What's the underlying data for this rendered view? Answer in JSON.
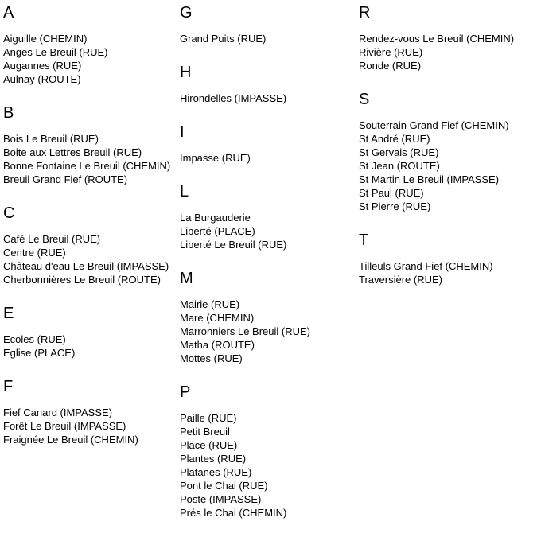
{
  "page": {
    "background_color": "#ffffff",
    "text_color": "#000000"
  },
  "index": {
    "columns": [
      {
        "sections": [
          {
            "letter": "A",
            "items": [
              "Aiguille (CHEMIN)",
              "Anges Le Breuil (RUE)",
              "Augannes (RUE)",
              "Aulnay (ROUTE)"
            ]
          },
          {
            "letter": "B",
            "items": [
              "Bois Le Breuil (RUE)",
              "Boite aux Lettres Breuil (RUE)",
              "Bonne Fontaine Le Breuil (CHEMIN)",
              "Breuil Grand Fief (ROUTE)"
            ]
          },
          {
            "letter": "C",
            "items": [
              "Café Le Breuil (RUE)",
              "Centre (RUE)",
              "Château d'eau Le Breuil (IMPASSE)",
              "Cherbonnières Le Breuil (ROUTE)"
            ]
          },
          {
            "letter": "E",
            "items": [
              "Ecoles (RUE)",
              "Eglise (PLACE)"
            ]
          },
          {
            "letter": "F",
            "items": [
              "Fief Canard (IMPASSE)",
              "Forêt Le Breuil (IMPASSE)",
              "Fraignée Le Breuil (CHEMIN)"
            ]
          }
        ]
      },
      {
        "sections": [
          {
            "letter": "G",
            "items": [
              "Grand Puits (RUE)"
            ]
          },
          {
            "letter": "H",
            "items": [
              "Hirondelles (IMPASSE)"
            ]
          },
          {
            "letter": "I",
            "items": [
              "Impasse (RUE)"
            ]
          },
          {
            "letter": "L",
            "items": [
              "La Burgauderie",
              "Liberté (PLACE)",
              "Liberté Le Breuil (RUE)"
            ]
          },
          {
            "letter": "M",
            "items": [
              "Mairie (RUE)",
              "Mare (CHEMIN)",
              "Marronniers Le Breuil (RUE)",
              "Matha (ROUTE)",
              "Mottes (RUE)"
            ]
          },
          {
            "letter": "P",
            "items": [
              "Paille (RUE)",
              "Petit Breuil",
              "Place (RUE)",
              "Plantes (RUE)",
              "Platanes (RUE)",
              "Pont le Chai (RUE)",
              "Poste (IMPASSE)",
              "Prés le Chai (CHEMIN)"
            ]
          }
        ]
      },
      {
        "sections": [
          {
            "letter": "R",
            "items": [
              "Rendez-vous Le Breuil (CHEMIN)",
              "Rivière (RUE)",
              "Ronde (RUE)"
            ]
          },
          {
            "letter": "S",
            "items": [
              "Souterrain Grand Fief (CHEMIN)",
              "St André (RUE)",
              "St Gervais (RUE)",
              "St Jean (ROUTE)",
              "St Martin Le Breuil (IMPASSE)",
              "St Paul (RUE)",
              "St Pierre (RUE)"
            ]
          },
          {
            "letter": "T",
            "items": [
              "Tilleuls Grand Fief (CHEMIN)",
              "Traversière (RUE)"
            ]
          }
        ]
      }
    ]
  }
}
